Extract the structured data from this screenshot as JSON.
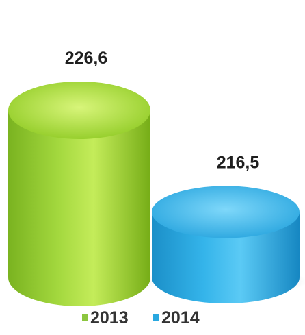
{
  "chart_data": {
    "type": "bar",
    "categories": [
      "2013",
      "2014"
    ],
    "values": [
      226.6,
      216.5
    ],
    "data_labels": [
      "226,6",
      "216,5"
    ],
    "title": "",
    "xlabel": "",
    "ylabel": "",
    "legend": {
      "placement": "bottom",
      "entries": [
        {
          "label": "2013",
          "color": "#8cc63f"
        },
        {
          "label": "2014",
          "color": "#29a8e0"
        }
      ]
    },
    "grid": false
  }
}
